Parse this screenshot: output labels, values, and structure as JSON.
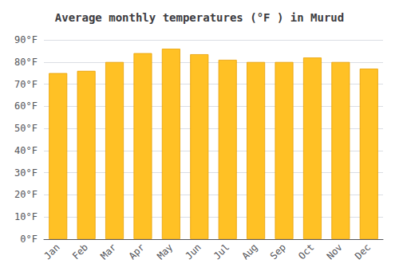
{
  "chart_data": {
    "type": "bar",
    "title": "Average monthly temperatures (°F ) in Murud",
    "categories": [
      "Jan",
      "Feb",
      "Mar",
      "Apr",
      "May",
      "Jun",
      "Jul",
      "Aug",
      "Sep",
      "Oct",
      "Nov",
      "Dec"
    ],
    "values": [
      75,
      76,
      80,
      84,
      86,
      83.5,
      81,
      80,
      80,
      82,
      80,
      77
    ],
    "color": "#FFC125",
    "ylim": [
      0,
      90
    ],
    "yticks": [
      {
        "value": 0,
        "label": "0°F"
      },
      {
        "value": 10,
        "label": "10°F"
      },
      {
        "value": 20,
        "label": "20°F"
      },
      {
        "value": 30,
        "label": "30°F"
      },
      {
        "value": 40,
        "label": "40°F"
      },
      {
        "value": 50,
        "label": "50°F"
      },
      {
        "value": 60,
        "label": "60°F"
      },
      {
        "value": 70,
        "label": "70°F"
      },
      {
        "value": 80,
        "label": "80°F"
      },
      {
        "value": 90,
        "label": "90°F"
      }
    ],
    "grid": true
  }
}
